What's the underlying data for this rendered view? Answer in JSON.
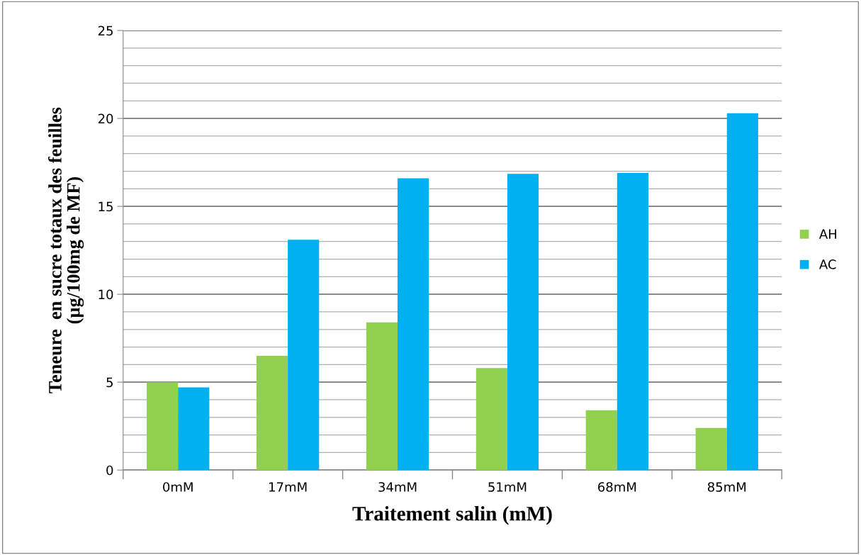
{
  "chart_data": {
    "type": "bar",
    "xlabel": "Traitement salin (mM)",
    "ylabel": "Teneure  en sucre totaux des feuilles\n(µg/100mg de MF)",
    "categories": [
      "0mM",
      "17mM",
      "34mM",
      "51mM",
      "68mM",
      "85mM"
    ],
    "series": [
      {
        "name": "AH",
        "color": "#92d050",
        "values": [
          5.0,
          6.5,
          8.4,
          5.8,
          3.4,
          2.4
        ]
      },
      {
        "name": "AC",
        "color": "#00b0f0",
        "values": [
          4.7,
          13.1,
          16.6,
          16.85,
          16.9,
          20.3
        ]
      }
    ],
    "ylim": [
      0,
      25
    ],
    "yticks": [
      0,
      5,
      10,
      15,
      20,
      25
    ],
    "grid": "y",
    "legend": "right"
  }
}
